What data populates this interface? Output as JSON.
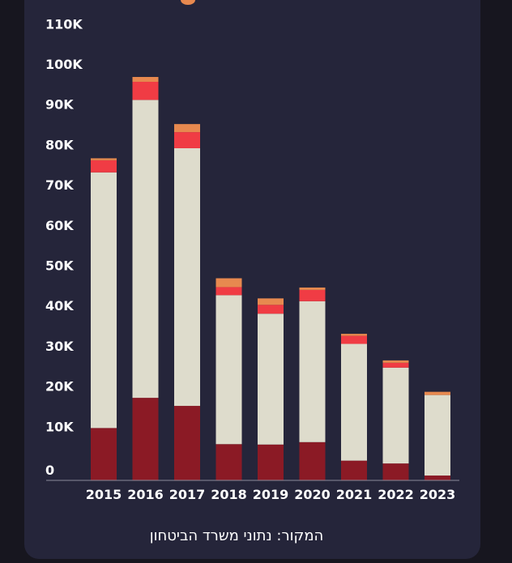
{
  "chart_data": {
    "type": "bar",
    "stacked": true,
    "categories": [
      "2015",
      "2016",
      "2017",
      "2018",
      "2019",
      "2020",
      "2021",
      "2022",
      "2023"
    ],
    "series": [
      {
        "values": [
          13000,
          20500,
          18500,
          9000,
          8900,
          9500,
          4900,
          4200,
          1200
        ],
        "color": "#8b1a25"
      },
      {
        "values": [
          63500,
          74000,
          64000,
          37000,
          32500,
          35000,
          29000,
          23800,
          20000
        ],
        "color": "#dedccc"
      },
      {
        "values": [
          3000,
          4500,
          4000,
          2000,
          2200,
          2800,
          2000,
          1200,
          0
        ],
        "color": "#f03c44"
      },
      {
        "values": [
          500,
          1200,
          2000,
          2200,
          1600,
          600,
          500,
          600,
          800
        ],
        "color": "#e7894f"
      }
    ],
    "yticks": [
      0,
      10000,
      20000,
      30000,
      40000,
      50000,
      60000,
      70000,
      80000,
      90000,
      100000,
      110000
    ],
    "ytick_labels": [
      "0",
      "10K",
      "20K",
      "30K",
      "40K",
      "50K",
      "60K",
      "70K",
      "80K",
      "90K",
      "100K",
      "110K"
    ],
    "ylim": [
      0,
      112000
    ],
    "grid": false
  },
  "source_text": "המקור: נתוני משרד הביטחון"
}
